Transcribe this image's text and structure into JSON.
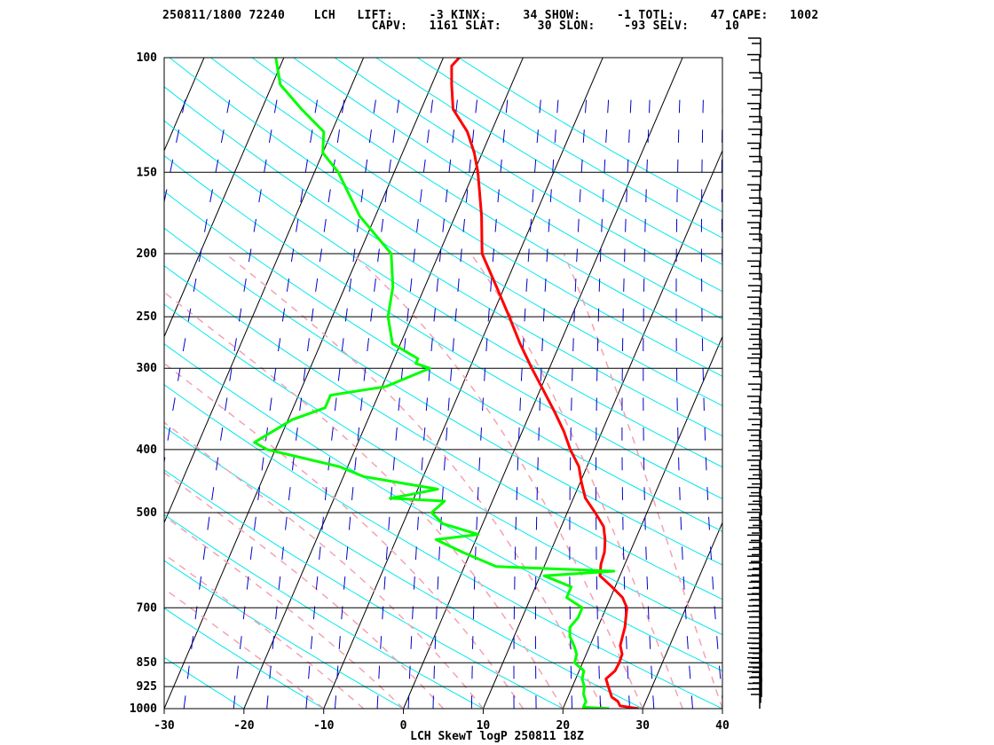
{
  "header": {
    "line1": "250811/1800 72240    LCH   LIFT:     -3 KINX:     34 SHOW:     -1 TOTL:     47 CAPE:   1002",
    "line2": "                             CAPV:   1161 SLAT:     30 SLON:    -93 SELV:     10"
  },
  "chart_data": {
    "type": "line",
    "title": "LCH SkewT logP 250811 18Z",
    "station": "LCH",
    "station_id": "72240",
    "date_time": "250811/1800",
    "indices": {
      "LIFT": -3,
      "KINX": 34,
      "SHOW": -1,
      "TOTL": 47,
      "CAPE": 1002,
      "CAPV": 1161,
      "SLAT": 30,
      "SLON": -93,
      "SELV": 10
    },
    "xlabel": "",
    "ylabel": "",
    "x_axis": {
      "ticks": [
        -30,
        -20,
        -10,
        0,
        10,
        20,
        30,
        40
      ],
      "range": [
        -30,
        40
      ],
      "units": "degC"
    },
    "y_axis": {
      "ticks": [
        100,
        150,
        200,
        250,
        300,
        400,
        500,
        700,
        850,
        925,
        1000
      ],
      "range": [
        1000,
        100
      ],
      "scale": "log",
      "units": "hPa"
    },
    "isotherm_skew_degC_per_log10p": 35,
    "series": [
      {
        "key": "temperature",
        "color": "#ff0000",
        "points": [
          [
            1000,
            29.5
          ],
          [
            990,
            27
          ],
          [
            975,
            26.5
          ],
          [
            960,
            25.5
          ],
          [
            925,
            24.5
          ],
          [
            900,
            23.8
          ],
          [
            875,
            24.5
          ],
          [
            850,
            24.6
          ],
          [
            825,
            24.5
          ],
          [
            800,
            23.8
          ],
          [
            775,
            23.6
          ],
          [
            750,
            23.4
          ],
          [
            725,
            23.0
          ],
          [
            700,
            22.6
          ],
          [
            675,
            21.5
          ],
          [
            650,
            19.6
          ],
          [
            625,
            17.5
          ],
          [
            600,
            17.0
          ],
          [
            575,
            16.8
          ],
          [
            550,
            16.2
          ],
          [
            525,
            15.3
          ],
          [
            500,
            13.5
          ],
          [
            475,
            11.5
          ],
          [
            450,
            10.2
          ],
          [
            425,
            9.0
          ],
          [
            400,
            7.0
          ],
          [
            375,
            5.2
          ],
          [
            350,
            3.0
          ],
          [
            325,
            0.5
          ],
          [
            300,
            -2.2
          ],
          [
            275,
            -5.0
          ],
          [
            250,
            -7.8
          ],
          [
            225,
            -11.0
          ],
          [
            200,
            -14.6
          ],
          [
            175,
            -16.7
          ],
          [
            150,
            -19.5
          ],
          [
            140,
            -21.0
          ],
          [
            130,
            -23.0
          ],
          [
            120,
            -26.0
          ],
          [
            110,
            -27.5
          ],
          [
            103,
            -28.5
          ],
          [
            100,
            -28.0
          ]
        ]
      },
      {
        "key": "dewpoint",
        "color": "#00ff00",
        "points": [
          [
            1000,
            25.8
          ],
          [
            995,
            22.5
          ],
          [
            975,
            22.5
          ],
          [
            950,
            21.8
          ],
          [
            925,
            21.5
          ],
          [
            900,
            20.8
          ],
          [
            875,
            20.6
          ],
          [
            850,
            19.0
          ],
          [
            825,
            18.8
          ],
          [
            800,
            18.0
          ],
          [
            775,
            17.0
          ],
          [
            750,
            16.5
          ],
          [
            725,
            17.0
          ],
          [
            700,
            17.0
          ],
          [
            675,
            14.5
          ],
          [
            650,
            14.5
          ],
          [
            625,
            10.5
          ],
          [
            615,
            19.0
          ],
          [
            605,
            4.0
          ],
          [
            575,
            -1.0
          ],
          [
            550,
            -5.0
          ],
          [
            540,
            0.0
          ],
          [
            520,
            -5.0
          ],
          [
            500,
            -7.0
          ],
          [
            480,
            -6.0
          ],
          [
            475,
            -13.0
          ],
          [
            470,
            -11.0
          ],
          [
            460,
            -7.5
          ],
          [
            455,
            -10.0
          ],
          [
            440,
            -17.5
          ],
          [
            425,
            -21.0
          ],
          [
            400,
            -31.0
          ],
          [
            390,
            -33.0
          ],
          [
            360,
            -29.5
          ],
          [
            345,
            -26.0
          ],
          [
            330,
            -26.0
          ],
          [
            320,
            -19.5
          ],
          [
            300,
            -15.0
          ],
          [
            295,
            -17.0
          ],
          [
            290,
            -17.0
          ],
          [
            275,
            -21.0
          ],
          [
            250,
            -23.0
          ],
          [
            225,
            -24.0
          ],
          [
            200,
            -26.0
          ],
          [
            175,
            -32.0
          ],
          [
            150,
            -37.0
          ],
          [
            140,
            -40.0
          ],
          [
            130,
            -41.0
          ],
          [
            120,
            -45.0
          ],
          [
            110,
            -49.0
          ],
          [
            100,
            -51.0
          ]
        ]
      }
    ],
    "wind_barbs_pressures_hPa": [
      1000,
      980,
      960,
      940,
      925,
      910,
      895,
      880,
      865,
      850,
      835,
      820,
      805,
      790,
      775,
      760,
      745,
      730,
      715,
      700,
      685,
      670,
      655,
      640,
      625,
      610,
      595,
      580,
      565,
      550,
      535,
      520,
      505,
      490,
      475,
      460,
      445,
      430,
      415,
      400,
      385,
      370,
      355,
      340,
      325,
      310,
      300,
      290,
      280,
      270,
      260,
      250,
      240,
      230,
      220,
      210,
      200,
      192,
      184,
      176,
      168,
      160,
      152,
      145,
      138,
      132,
      126,
      120,
      113,
      106,
      100
    ],
    "grid": {
      "isobars": true,
      "isotherm_color": "#000000",
      "dry_adiabat_color": "#00e8f0",
      "moist_adiabat_color": "#f4a2b2",
      "mixing_ratio_color": "#0000c8"
    }
  }
}
